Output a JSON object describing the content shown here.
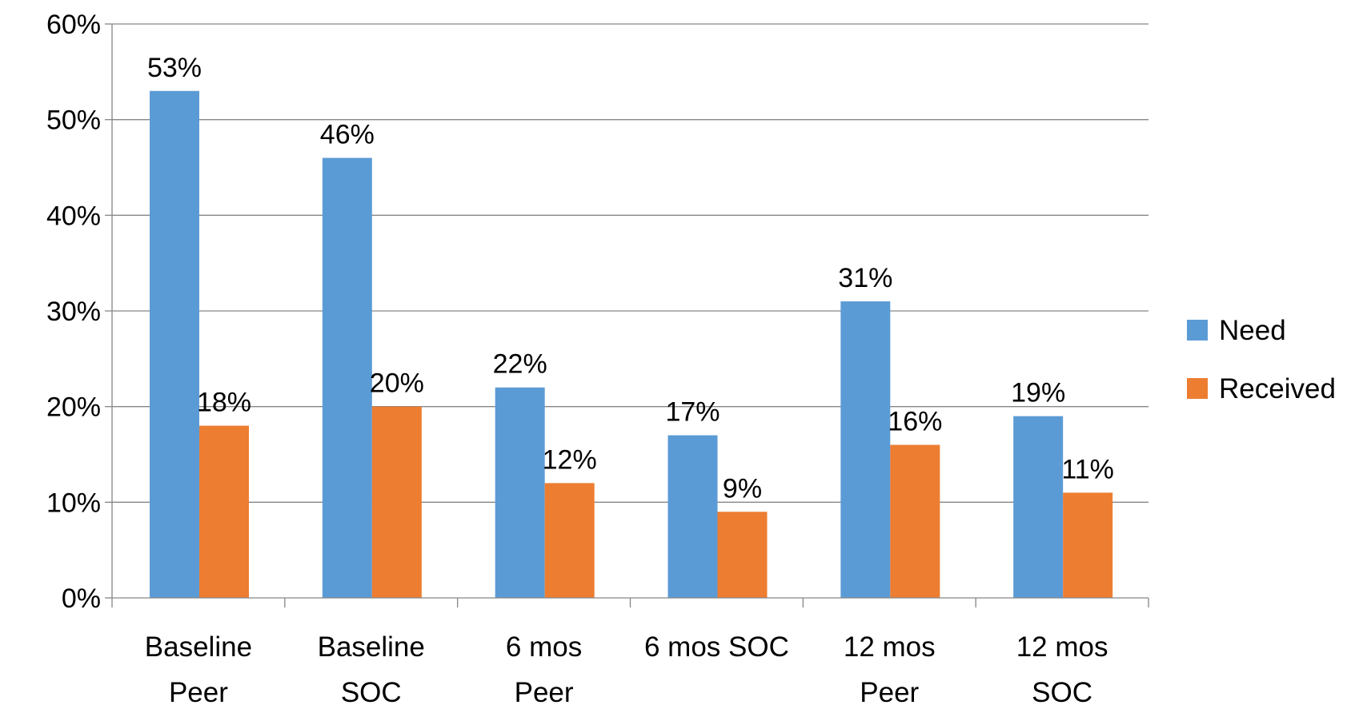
{
  "chart_data": {
    "type": "bar",
    "title": "",
    "xlabel": "",
    "ylabel": "",
    "categories": [
      [
        "Baseline",
        "Peer"
      ],
      [
        "Baseline",
        "SOC"
      ],
      [
        "6 mos",
        "Peer"
      ],
      [
        "6 mos SOC"
      ],
      [
        "12 mos",
        "Peer"
      ],
      [
        "12 mos",
        "SOC"
      ]
    ],
    "series": [
      {
        "name": "Need",
        "color": "#5B9BD5",
        "values": [
          53,
          46,
          22,
          17,
          31,
          19
        ],
        "labels": [
          "53%",
          "46%",
          "22%",
          "17%",
          "31%",
          "19%"
        ]
      },
      {
        "name": "Received",
        "color": "#ED7D31",
        "values": [
          18,
          20,
          12,
          9,
          16,
          11
        ],
        "labels": [
          "18%",
          "20%",
          "12%",
          "9%",
          "16%",
          "11%"
        ]
      }
    ],
    "ylim": [
      0,
      60
    ],
    "yticks": [
      0,
      10,
      20,
      30,
      40,
      50,
      60
    ],
    "ytick_labels": [
      "0%",
      "10%",
      "20%",
      "30%",
      "40%",
      "50%",
      "60%"
    ],
    "grid": true,
    "legend_position": "right"
  }
}
